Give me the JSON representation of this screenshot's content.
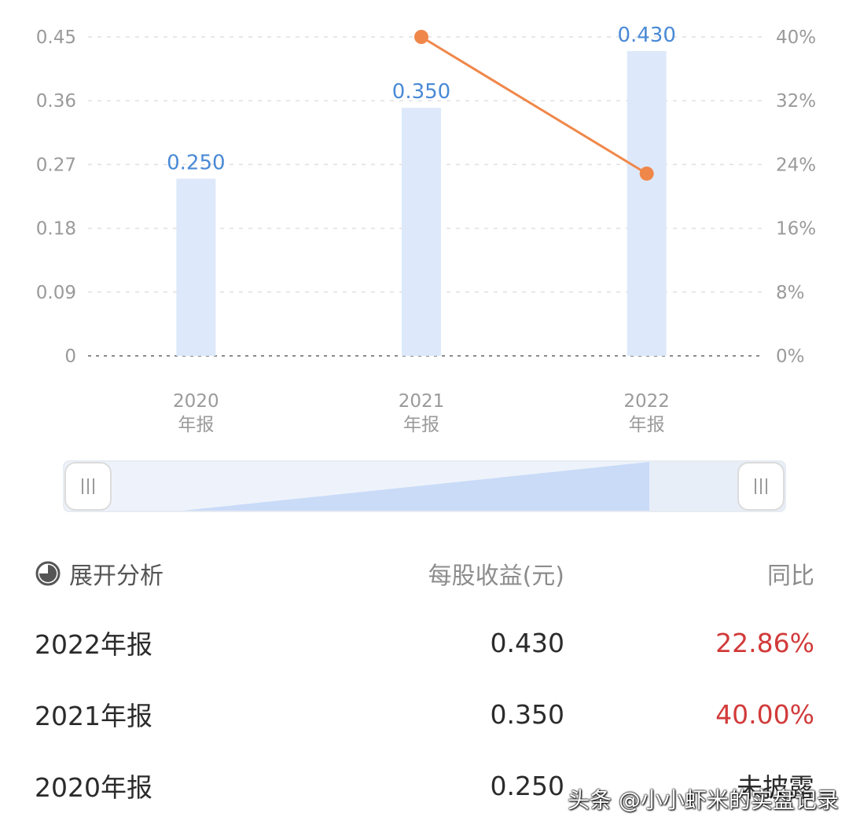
{
  "chart_data": {
    "type": "bar+line",
    "categories": [
      "2020\n年报",
      "2021\n年报",
      "2022\n年报"
    ],
    "series": [
      {
        "type": "bar",
        "axis": "left",
        "values": [
          0.25,
          0.35,
          0.43
        ],
        "labels": [
          "0.250",
          "0.350",
          "0.430"
        ]
      },
      {
        "type": "line",
        "axis": "right",
        "values": [
          null,
          40.0,
          22.86
        ]
      }
    ],
    "y_left": {
      "ticks": [
        "0",
        "0.09",
        "0.18",
        "0.27",
        "0.36",
        "0.45"
      ],
      "ylim": [
        0,
        0.45
      ]
    },
    "y_right": {
      "ticks": [
        "0%",
        "8%",
        "16%",
        "24%",
        "32%",
        "40%"
      ],
      "ylim": [
        0,
        40
      ]
    },
    "grid": true,
    "colors": {
      "bar": "#dde9fa",
      "bar_label": "#4a8ad6",
      "line": "#f0874a",
      "grid": "#e0e0e0",
      "tick": "#9a9a9a"
    }
  },
  "slider": {
    "start_fraction": 0.0,
    "end_fraction": 1.0
  },
  "table": {
    "expand_label": "展开分析",
    "col_eps": "每股收益(元)",
    "col_yoy": "同比",
    "rows": [
      {
        "period": "2022年报",
        "eps": "0.430",
        "yoy": "22.86%",
        "yoy_state": "up"
      },
      {
        "period": "2021年报",
        "eps": "0.350",
        "yoy": "40.00%",
        "yoy_state": "up"
      },
      {
        "period": "2020年报",
        "eps": "0.250",
        "yoy": "未披露",
        "yoy_state": "none"
      }
    ]
  },
  "watermark": "头条 @小小虾米的实盘记录",
  "colors": {
    "up": "#d23a3a",
    "header": "#8c8c8c"
  }
}
